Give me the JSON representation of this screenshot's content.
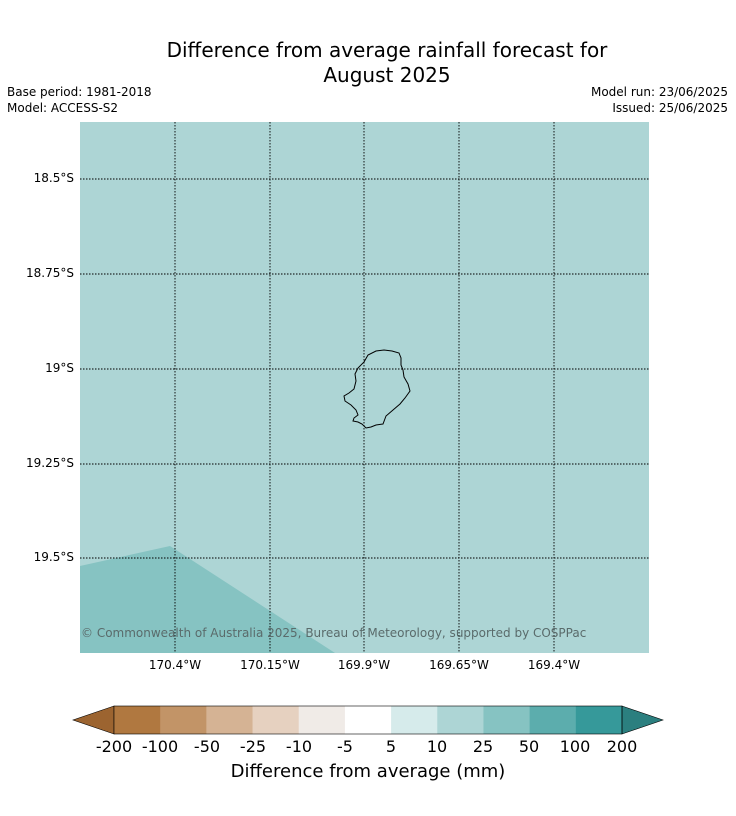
{
  "title_line1": "Difference from average rainfall forecast for",
  "title_line2": "August 2025",
  "base_period": "Base period: 1981-2018",
  "model": "Model: ACCESS-S2",
  "model_run": "Model run: 23/06/2025",
  "issued": "Issued: 25/06/2025",
  "latitude_labels": [
    "18.5°S",
    "18.75°S",
    "19°S",
    "19.25°S",
    "19.5°S"
  ],
  "longitude_labels": [
    "170.4°W",
    "170.15°W",
    "169.9°W",
    "169.65°W",
    "169.4°W"
  ],
  "copyright": "© Commonwealth of Australia 2025, Bureau of Meteorology, supported by COSPPac",
  "map": {
    "background_category": "10 to 25",
    "background_color": "#add5d5",
    "southwest_region_category": "25 to 50",
    "southwest_region_color": "#86c3c2",
    "island_outline": "Niue"
  },
  "colorbar": {
    "ticks": [
      "-200",
      "-100",
      "-50",
      "-25",
      "-10",
      "-5",
      "5",
      "10",
      "25",
      "50",
      "100",
      "200"
    ],
    "colors": [
      "#9c6430",
      "#b07840",
      "#c29467",
      "#d5b394",
      "#e6d1c0",
      "#f0ebe7",
      "#ffffff",
      "#d6ebeb",
      "#add5d5",
      "#86c3c2",
      "#5cadad",
      "#36999a",
      "#2b7f7f"
    ],
    "label": "Difference from average (mm)"
  }
}
